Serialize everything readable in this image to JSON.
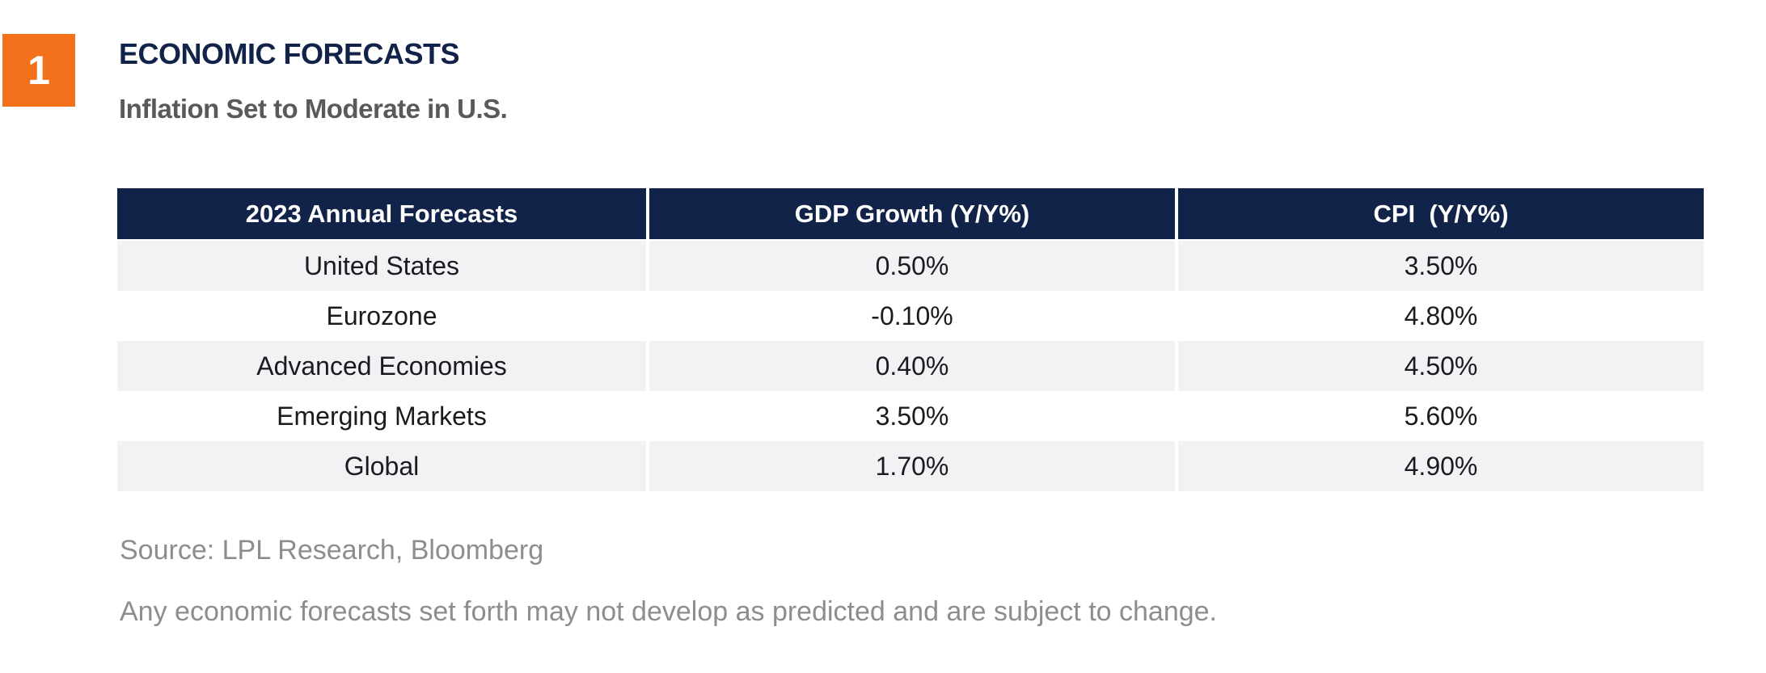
{
  "figure_badge": {
    "number": "1",
    "background_color": "#F4711C",
    "text_color": "#FFFFFF"
  },
  "header": {
    "title": "ECONOMIC FORECASTS",
    "subtitle": "Inflation Set to Moderate in U.S.",
    "title_color": "#12234A",
    "subtitle_color": "#58595B"
  },
  "chart_data": {
    "type": "table",
    "title": "ECONOMIC FORECASTS",
    "subtitle": "Inflation Set to Moderate in U.S.",
    "columns": [
      "2023 Annual Forecasts",
      "GDP Growth (Y/Y%)",
      "CPI  (Y/Y%)"
    ],
    "rows": [
      [
        "United States",
        "0.50%",
        "3.50%"
      ],
      [
        "Eurozone",
        "-0.10%",
        "4.80%"
      ],
      [
        "Advanced Economies",
        "0.40%",
        "4.50%"
      ],
      [
        "Emerging Markets",
        "3.50%",
        "5.60%"
      ],
      [
        "Global",
        "1.70%",
        "4.90%"
      ]
    ],
    "striped_row_indices": [
      0,
      2,
      4
    ],
    "header_bg_color": "#12234A",
    "header_text_color": "#FFFFFF",
    "stripe_color": "#F2F2F5",
    "source": "Source: LPL Research, Bloomberg",
    "disclaimer": "Any economic forecasts set forth may not develop as predicted and are subject to change."
  }
}
